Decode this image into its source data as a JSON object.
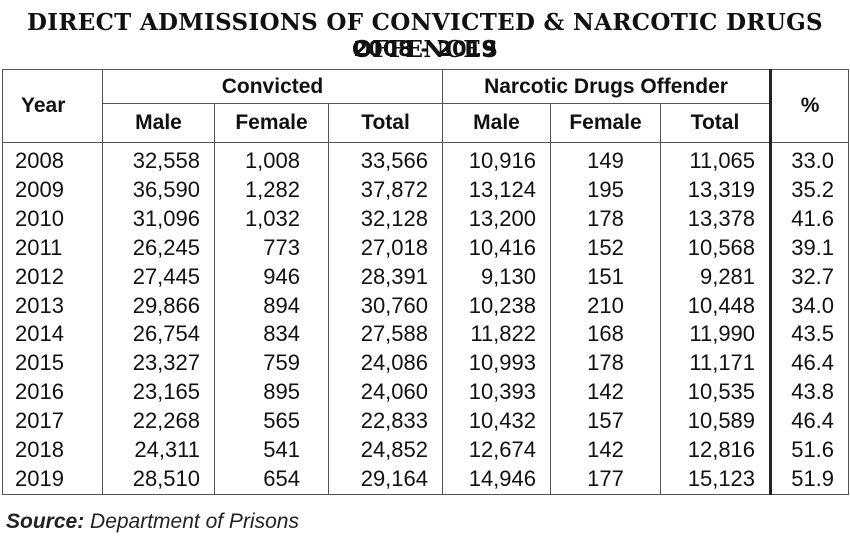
{
  "title": {
    "line1": "DIRECT ADMISSIONS OF CONVICTED & NARCOTIC DRUGS OFFENCES",
    "line2": "2008 - 2019"
  },
  "table": {
    "headers": {
      "year": "Year",
      "convicted": "Convicted",
      "narcotic": "Narcotic Drugs Offender",
      "percent": "%",
      "male": "Male",
      "female": "Female",
      "total": "Total"
    },
    "rows": [
      [
        "2008",
        "32,558",
        "1,008",
        "33,566",
        "10,916",
        "149",
        "11,065",
        "33.0"
      ],
      [
        "2009",
        "36,590",
        "1,282",
        "37,872",
        "13,124",
        "195",
        "13,319",
        "35.2"
      ],
      [
        "2010",
        "31,096",
        "1,032",
        "32,128",
        "13,200",
        "178",
        "13,378",
        "41.6"
      ],
      [
        "2011",
        "26,245",
        "773",
        "27,018",
        "10,416",
        "152",
        "10,568",
        "39.1"
      ],
      [
        "2012",
        "27,445",
        "946",
        "28,391",
        "9,130",
        "151",
        "9,281",
        "32.7"
      ],
      [
        "2013",
        "29,866",
        "894",
        "30,760",
        "10,238",
        "210",
        "10,448",
        "34.0"
      ],
      [
        "2014",
        "26,754",
        "834",
        "27,588",
        "11,822",
        "168",
        "11,990",
        "43.5"
      ],
      [
        "2015",
        "23,327",
        "759",
        "24,086",
        "10,993",
        "178",
        "11,171",
        "46.4"
      ],
      [
        "2016",
        "23,165",
        "895",
        "24,060",
        "10,393",
        "142",
        "10,535",
        "43.8"
      ],
      [
        "2017",
        "22,268",
        "565",
        "22,833",
        "10,432",
        "157",
        "10,589",
        "46.4"
      ],
      [
        "2018",
        "24,311",
        "541",
        "24,852",
        "12,674",
        "142",
        "12,816",
        "51.6"
      ],
      [
        "2019",
        "28,510",
        "654",
        "29,164",
        "14,946",
        "177",
        "15,123",
        "51.9"
      ]
    ]
  },
  "source": {
    "label": "Source:",
    "text": "Department of Prisons"
  }
}
